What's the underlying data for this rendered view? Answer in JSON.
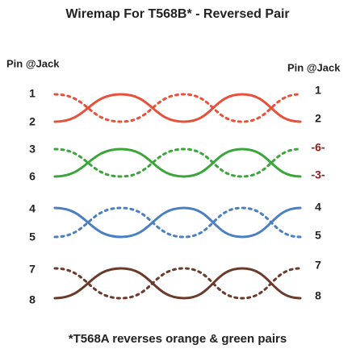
{
  "title": "Wiremap For T568B* - Reversed Pair",
  "left": {
    "header": "Pin @Jack",
    "pins": [
      "1",
      "2",
      "3",
      "6",
      "4",
      "5",
      "7",
      "8"
    ]
  },
  "right": {
    "header": "Pin @Jack",
    "pins": [
      "1",
      "2",
      "-6-",
      "-3-",
      "4",
      "5",
      "7",
      "8"
    ]
  },
  "footnote": "*T568A reverses orange & green pairs"
}
